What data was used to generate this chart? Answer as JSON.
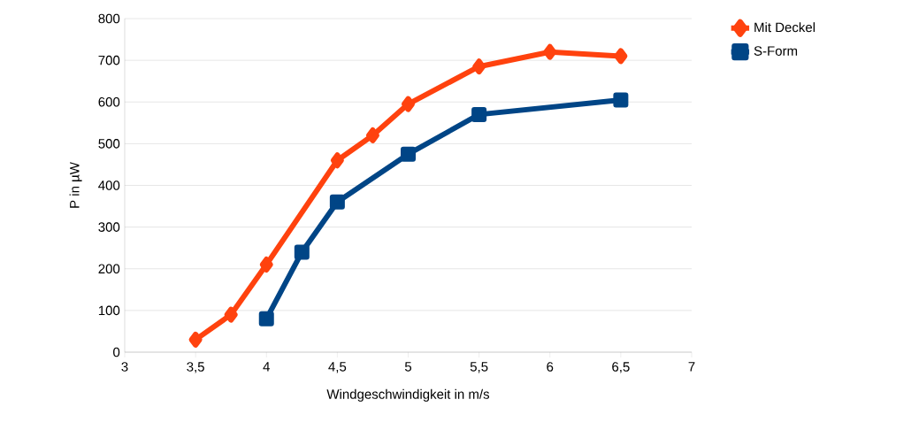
{
  "chart_data": {
    "type": "line",
    "xlabel": "Windgeschwindigkeit in m/s",
    "ylabel": "P in µW",
    "xlim": [
      3,
      7
    ],
    "xticks": [
      {
        "value": 3,
        "label": "3"
      },
      {
        "value": 3.5,
        "label": "3,5"
      },
      {
        "value": 4,
        "label": "4"
      },
      {
        "value": 4.5,
        "label": "4,5"
      },
      {
        "value": 5,
        "label": "5"
      },
      {
        "value": 5.5,
        "label": "5,5"
      },
      {
        "value": 6,
        "label": "6"
      },
      {
        "value": 6.5,
        "label": "6,5"
      },
      {
        "value": 7,
        "label": "7"
      }
    ],
    "ylim": [
      0,
      800
    ],
    "yticks": [
      0,
      100,
      200,
      300,
      400,
      500,
      600,
      700,
      800
    ],
    "grid": "y",
    "legend": "right",
    "line_style": "solid",
    "series": [
      {
        "name": "Mit Deckel",
        "color": "#ff420e",
        "marker": "diamond",
        "x": [
          3.5,
          3.75,
          4,
          4.5,
          4.75,
          5,
          5.5,
          6,
          6.5
        ],
        "values": [
          30,
          90,
          210,
          460,
          520,
          595,
          685,
          720,
          710
        ]
      },
      {
        "name": "S-Form",
        "color": "#004586",
        "marker": "square",
        "x": [
          4,
          4.25,
          4.5,
          5,
          5.5,
          6.5
        ],
        "values": [
          80,
          240,
          360,
          475,
          570,
          605
        ]
      }
    ]
  }
}
